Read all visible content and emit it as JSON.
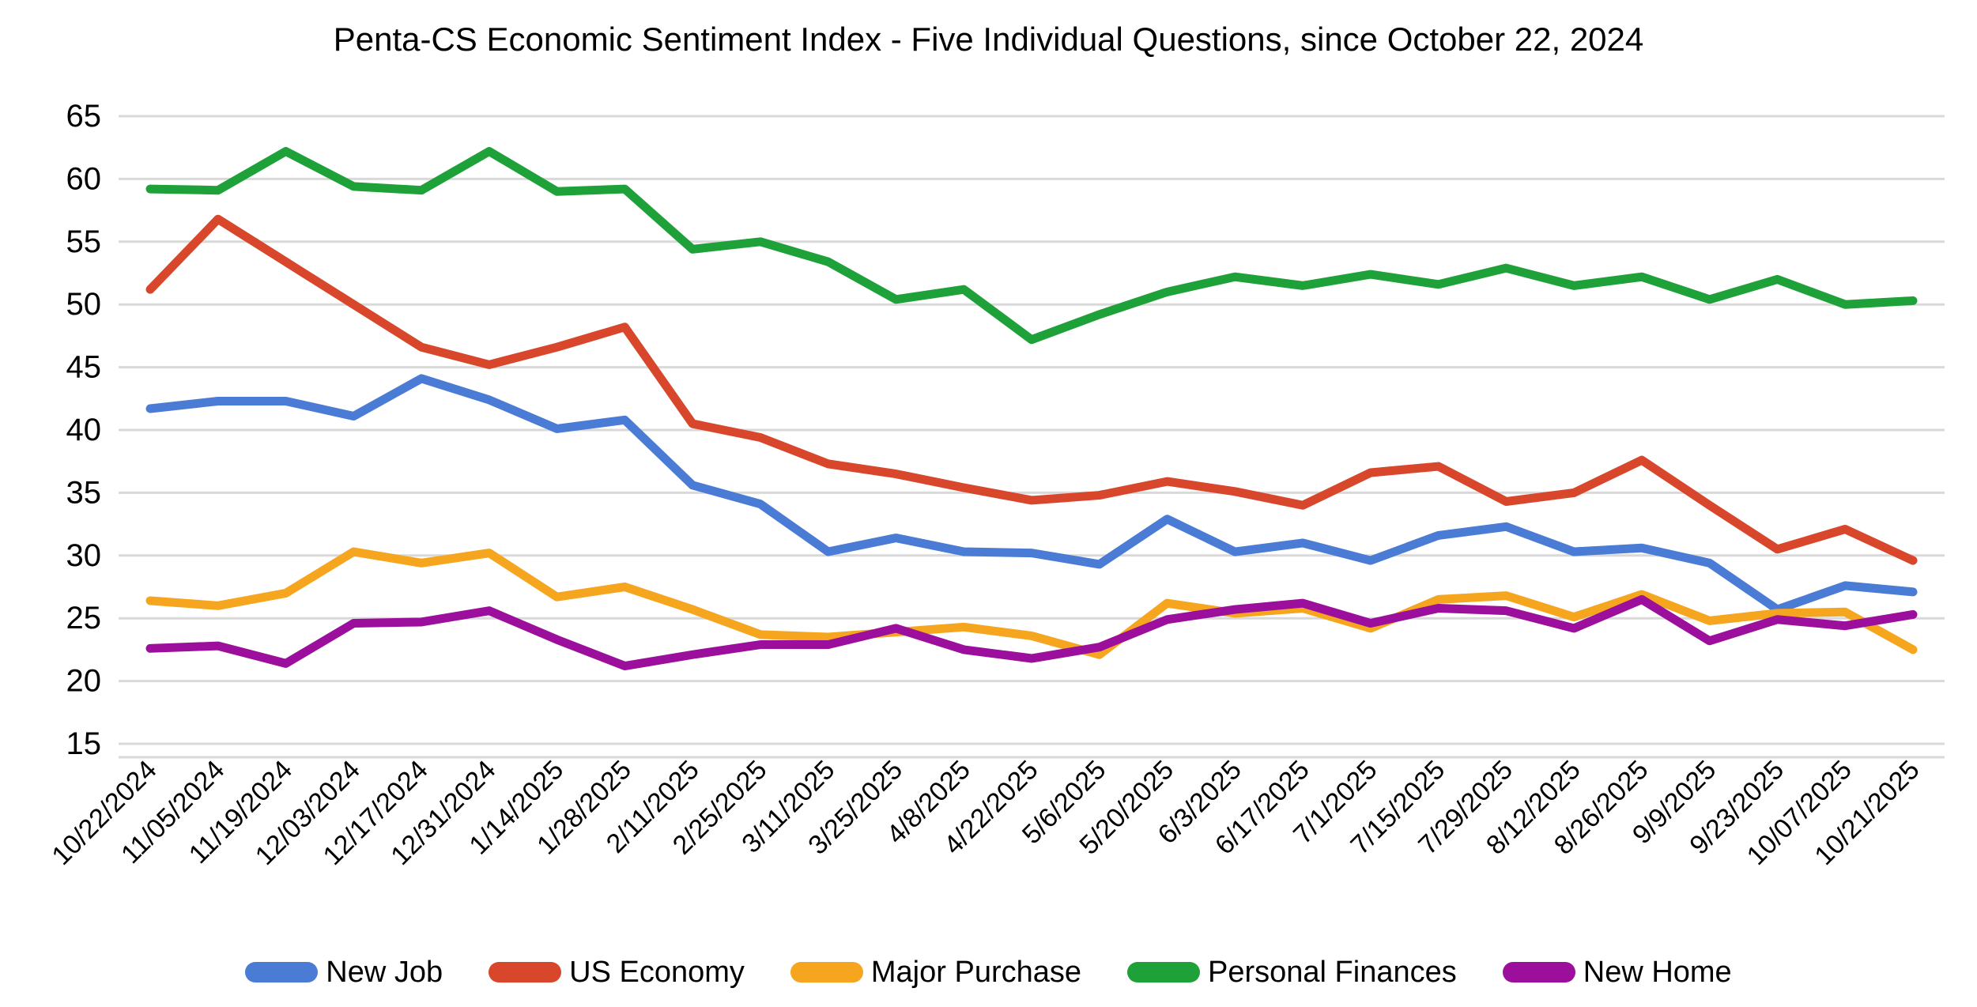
{
  "chart_data": {
    "type": "line",
    "title": "Penta-CS Economic Sentiment Index - Five Individual Questions, since October 22, 2024",
    "xlabel": "",
    "ylabel": "",
    "ylim": [
      15,
      65
    ],
    "ytick_step": 5,
    "grid": true,
    "legend_position": "bottom",
    "categories": [
      "10/22/2024",
      "11/05/2024",
      "11/19/2024",
      "12/03/2024",
      "12/17/2024",
      "12/31/2024",
      "1/14/2025",
      "1/28/2025",
      "2/11/2025",
      "2/25/2025",
      "3/11/2025",
      "3/25/2025",
      "4/8/2025",
      "4/22/2025",
      "5/6/2025",
      "5/20/2025",
      "6/3/2025",
      "6/17/2025",
      "7/1/2025",
      "7/15/2025",
      "7/29/2025",
      "8/12/2025",
      "8/26/2025",
      "9/9/2025",
      "9/23/2025",
      "10/07/2025",
      "10/21/2025"
    ],
    "series": [
      {
        "name": "New Job",
        "color": "#4A7CD6",
        "values": [
          41.7,
          42.3,
          42.3,
          41.1,
          44.1,
          42.4,
          40.1,
          40.8,
          35.6,
          34.1,
          30.3,
          31.4,
          30.3,
          30.2,
          29.3,
          32.9,
          30.3,
          31.0,
          29.6,
          31.6,
          32.3,
          30.3,
          30.6,
          29.4,
          25.7,
          27.6,
          27.1
        ]
      },
      {
        "name": "US Economy",
        "color": "#D8472B",
        "values": [
          51.2,
          56.8,
          53.4,
          50.0,
          46.6,
          45.2,
          46.6,
          48.2,
          40.5,
          39.4,
          37.3,
          36.5,
          35.4,
          34.4,
          34.8,
          35.9,
          35.1,
          34.0,
          36.6,
          37.1,
          34.3,
          35.0,
          37.6,
          34.0,
          30.5,
          32.1,
          29.6
        ]
      },
      {
        "name": "Major Purchase",
        "color": "#F5A61E",
        "values": [
          26.4,
          26.0,
          27.0,
          30.3,
          29.4,
          30.2,
          26.7,
          27.5,
          25.7,
          23.7,
          23.5,
          23.9,
          24.3,
          23.6,
          22.1,
          26.2,
          25.4,
          25.8,
          24.2,
          26.5,
          26.8,
          25.1,
          26.9,
          24.8,
          25.4,
          25.5,
          22.5
        ]
      },
      {
        "name": "Personal Finances",
        "color": "#1FA139",
        "values": [
          59.2,
          59.1,
          62.2,
          59.4,
          59.1,
          62.2,
          59.0,
          59.2,
          54.4,
          55.0,
          53.4,
          50.4,
          51.2,
          47.2,
          49.2,
          51.0,
          52.2,
          51.5,
          52.4,
          51.6,
          52.9,
          51.5,
          52.2,
          50.4,
          52.0,
          50.0,
          50.3
        ]
      },
      {
        "name": "New Home",
        "color": "#9C0E9C",
        "values": [
          22.6,
          22.8,
          21.4,
          24.6,
          24.7,
          25.6,
          23.3,
          21.2,
          22.1,
          22.9,
          22.9,
          24.2,
          22.5,
          21.8,
          22.7,
          24.9,
          25.7,
          26.2,
          24.6,
          25.8,
          25.6,
          24.2,
          26.5,
          23.2,
          24.9,
          24.4,
          25.3
        ]
      }
    ]
  },
  "colors": {
    "background": "#ffffff",
    "gridline": "#d9d9d9",
    "axis_line": "#d9d9d9",
    "axis_text": "#000000"
  }
}
